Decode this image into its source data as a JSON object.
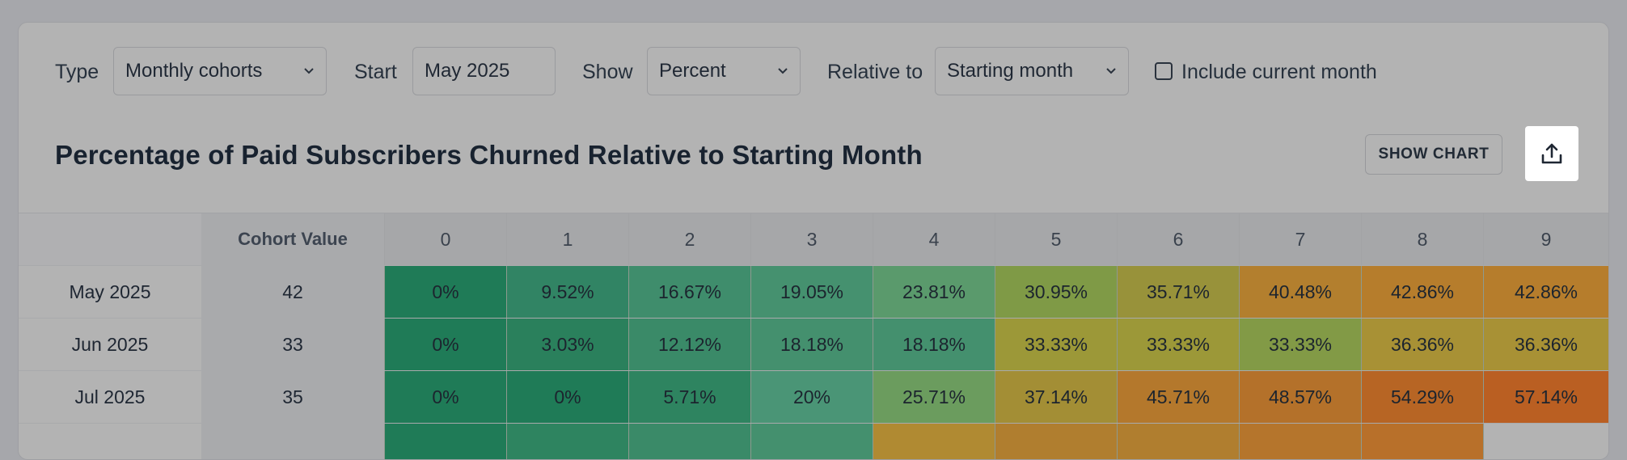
{
  "filters": {
    "type_label": "Type",
    "type_value": "Monthly cohorts",
    "start_label": "Start",
    "start_value": "May 2025",
    "show_label": "Show",
    "show_value": "Percent",
    "relative_label": "Relative to",
    "relative_value": "Starting month",
    "include_current_label": "Include current month",
    "include_current_checked": false
  },
  "title": "Percentage of Paid Subscribers Churned Relative to Starting Month",
  "actions": {
    "show_chart_label": "SHOW CHART",
    "export_icon": "upload-icon"
  },
  "table": {
    "header_cohort": "",
    "header_value": "Cohort Value",
    "month_headers": [
      "0",
      "1",
      "2",
      "3",
      "4",
      "5",
      "6",
      "7",
      "8",
      "9"
    ],
    "rows": [
      {
        "cohort": "May 2025",
        "value": "42",
        "cells": [
          "0%",
          "9.52%",
          "16.67%",
          "19.05%",
          "23.81%",
          "30.95%",
          "35.71%",
          "40.48%",
          "42.86%",
          "42.86%"
        ]
      },
      {
        "cohort": "Jun 2025",
        "value": "33",
        "cells": [
          "0%",
          "3.03%",
          "12.12%",
          "18.18%",
          "18.18%",
          "33.33%",
          "33.33%",
          "33.33%",
          "36.36%",
          "36.36%"
        ]
      },
      {
        "cohort": "Jul 2025",
        "value": "35",
        "cells": [
          "0%",
          "0%",
          "5.71%",
          "20%",
          "25.71%",
          "37.14%",
          "45.71%",
          "48.57%",
          "54.29%",
          "57.14%"
        ]
      }
    ],
    "cell_colors": [
      [
        "#1f7b57",
        "#318464",
        "#3f8d6c",
        "#45916f",
        "#5a9a6c",
        "#7f9a46",
        "#98923a",
        "#b37f2e",
        "#b67d2c",
        "#b67d2c"
      ],
      [
        "#1f7b57",
        "#2a805c",
        "#3a8a68",
        "#44906e",
        "#44906e",
        "#9c9838",
        "#9c9838",
        "#829a46",
        "#a89135",
        "#a89135"
      ],
      [
        "#1f7b57",
        "#1f7b57",
        "#2e8460",
        "#4a9576",
        "#6b9c5e",
        "#a38e35",
        "#b4782c",
        "#b4712a",
        "#b76524",
        "#ba5f22"
      ]
    ],
    "partial_row_colors": [
      "#1f7b57",
      "#2e8460",
      "#3a8a68",
      "#44906e",
      "#b08a32",
      "#b07e2f",
      "#b07e2f",
      "#b5752c",
      "#b8702a",
      "#b3b3b3"
    ]
  }
}
